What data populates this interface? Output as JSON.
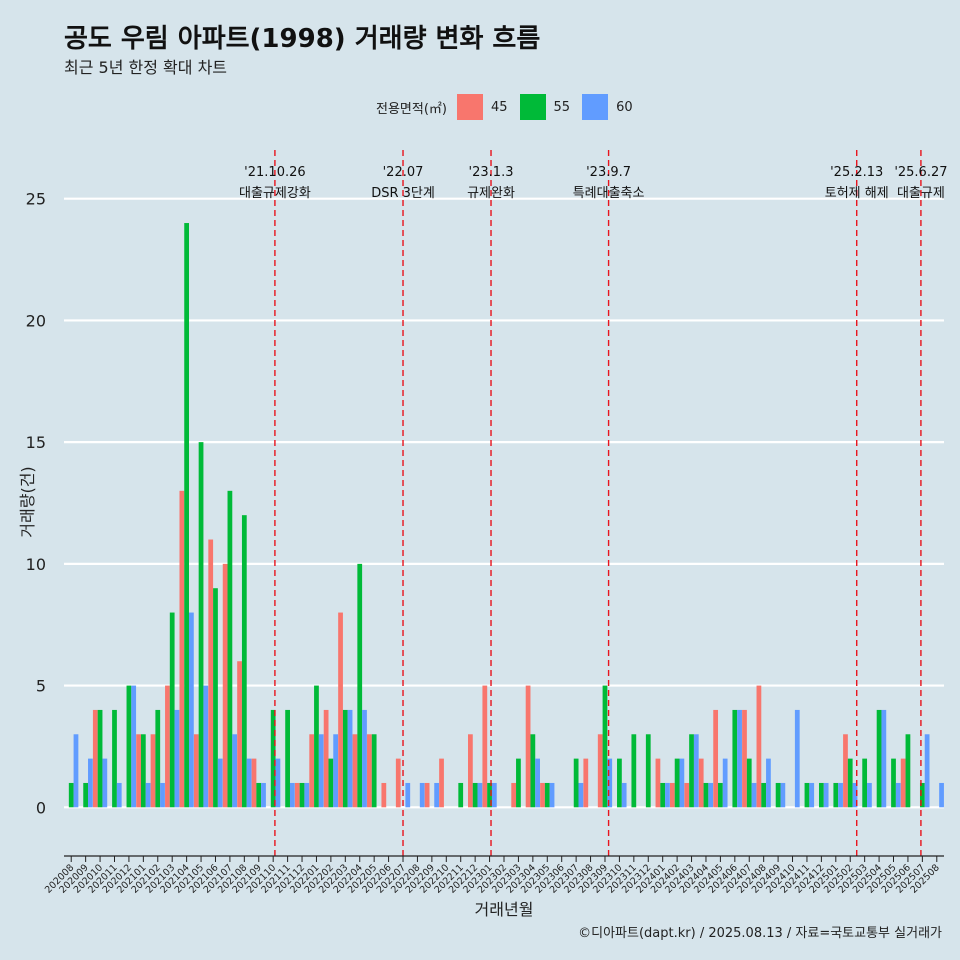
{
  "chart_data": {
    "type": "bar",
    "title": "공도 우림 아파트(1998) 거래량 변화 흐름",
    "subtitle": "최근 5년 한정 확대 차트",
    "xlabel": "거래년월",
    "ylabel": "거래량(건)",
    "ylim": [
      -2,
      27
    ],
    "yticks": [
      0,
      5,
      10,
      15,
      20,
      25
    ],
    "grid": true,
    "legend": {
      "title": "전용면적(㎡)",
      "position": "top"
    },
    "categories": [
      "202008",
      "202009",
      "202010",
      "202011",
      "202012",
      "202101",
      "202102",
      "202103",
      "202104",
      "202105",
      "202106",
      "202107",
      "202108",
      "202109",
      "202110",
      "202111",
      "202112",
      "202201",
      "202202",
      "202203",
      "202204",
      "202205",
      "202206",
      "202207",
      "202208",
      "202209",
      "202210",
      "202211",
      "202212",
      "202301",
      "202302",
      "202303",
      "202304",
      "202305",
      "202306",
      "202307",
      "202308",
      "202309",
      "202310",
      "202311",
      "202312",
      "202401",
      "202402",
      "202403",
      "202404",
      "202405",
      "202406",
      "202407",
      "202408",
      "202409",
      "202410",
      "202411",
      "202412",
      "202501",
      "202502",
      "202503",
      "202504",
      "202505",
      "202506",
      "202507",
      "202508"
    ],
    "series": [
      {
        "name": "45",
        "color": "#f8766d",
        "values": [
          0,
          0,
          4,
          0,
          0,
          3,
          3,
          5,
          13,
          3,
          11,
          10,
          6,
          2,
          0,
          0,
          1,
          3,
          4,
          8,
          3,
          3,
          1,
          2,
          0,
          1,
          2,
          0,
          3,
          5,
          0,
          1,
          5,
          1,
          0,
          0,
          2,
          3,
          0,
          0,
          0,
          2,
          1,
          1,
          2,
          4,
          0,
          4,
          5,
          0,
          0,
          0,
          0,
          0,
          3,
          0,
          0,
          0,
          2,
          0,
          0
        ]
      },
      {
        "name": "55",
        "color": "#00ba38",
        "values": [
          1,
          1,
          4,
          4,
          5,
          3,
          4,
          8,
          24,
          15,
          9,
          13,
          12,
          1,
          4,
          4,
          1,
          5,
          2,
          4,
          10,
          3,
          0,
          0,
          0,
          0,
          0,
          1,
          1,
          1,
          0,
          2,
          3,
          1,
          0,
          2,
          0,
          5,
          2,
          3,
          3,
          1,
          2,
          3,
          1,
          1,
          4,
          2,
          1,
          1,
          0,
          1,
          1,
          1,
          2,
          2,
          4,
          2,
          3,
          1,
          0
        ]
      },
      {
        "name": "60",
        "color": "#619cff",
        "values": [
          3,
          2,
          2,
          1,
          5,
          1,
          1,
          4,
          8,
          5,
          2,
          3,
          2,
          1,
          2,
          1,
          1,
          3,
          3,
          4,
          4,
          0,
          0,
          1,
          1,
          1,
          0,
          0,
          1,
          1,
          0,
          0,
          2,
          1,
          0,
          1,
          0,
          2,
          1,
          0,
          0,
          1,
          2,
          3,
          1,
          2,
          4,
          1,
          2,
          1,
          4,
          1,
          1,
          1,
          1,
          1,
          4,
          1,
          0,
          3,
          1
        ]
      }
    ],
    "annotations": [
      {
        "after": "202110",
        "frac": 0.12,
        "date": "'21.10.26",
        "label": "대출규제강화"
      },
      {
        "after": "202207",
        "frac": 0.0,
        "date": "'22.07",
        "label": "DSR 3단계"
      },
      {
        "after": "202301",
        "frac": 0.1,
        "date": "'23.1.3",
        "label": "규제완화"
      },
      {
        "after": "202309",
        "frac": 0.25,
        "date": "'23.9.7",
        "label": "특례대출축소"
      },
      {
        "after": "202502",
        "frac": 0.45,
        "date": "'25.2.13",
        "label": "토허제 해제"
      },
      {
        "after": "202506",
        "frac": 0.9,
        "date": "'25.6.27",
        "label": "대출규제"
      }
    ]
  },
  "caption": "©디아파트(dapt.kr) / 2025.08.13 / 자료=국토교통부 실거래가"
}
